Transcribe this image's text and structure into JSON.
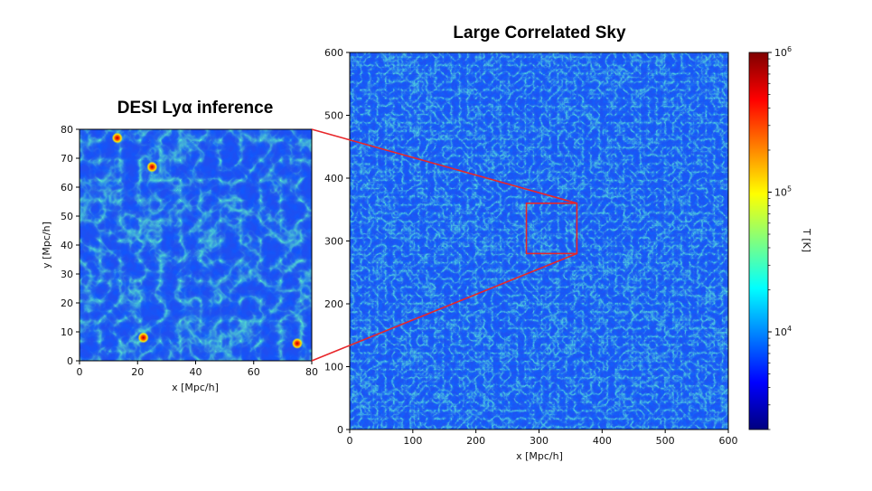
{
  "chart_data": [
    {
      "type": "heatmap",
      "title": "DESI Lyα inference",
      "xlabel": "x [Mpc/h]",
      "ylabel": "y [Mpc/h]",
      "xlim": [
        0,
        80
      ],
      "ylim": [
        0,
        80
      ],
      "xticks": [
        "0",
        "20",
        "40",
        "60",
        "80"
      ],
      "yticks": [
        "0",
        "10",
        "20",
        "30",
        "40",
        "50",
        "60",
        "70",
        "80"
      ],
      "colormap": "jet",
      "hotspots": [
        [
          13,
          77
        ],
        [
          25,
          67
        ],
        [
          75,
          6
        ],
        [
          22,
          8
        ]
      ]
    },
    {
      "type": "heatmap",
      "title": "Large Correlated Sky",
      "xlabel": "x [Mpc/h]",
      "ylabel": "",
      "xlim": [
        0,
        600
      ],
      "ylim": [
        0,
        600
      ],
      "xticks": [
        "0",
        "100",
        "200",
        "300",
        "400",
        "500",
        "600"
      ],
      "yticks": [
        "0",
        "100",
        "200",
        "300",
        "400",
        "500",
        "600"
      ],
      "colormap": "jet",
      "zoom_box": {
        "x0": 280,
        "x1": 360,
        "y0": 280,
        "y1": 360,
        "color": "#e8262a"
      }
    }
  ],
  "colorbar": {
    "label": "T [K]",
    "scale": "log",
    "range": [
      2000,
      1000000
    ],
    "ticks": [
      {
        "base": "10",
        "exp": "4",
        "value": 10000
      },
      {
        "base": "10",
        "exp": "5",
        "value": 100000
      },
      {
        "base": "10",
        "exp": "6",
        "value": 1000000
      }
    ]
  }
}
